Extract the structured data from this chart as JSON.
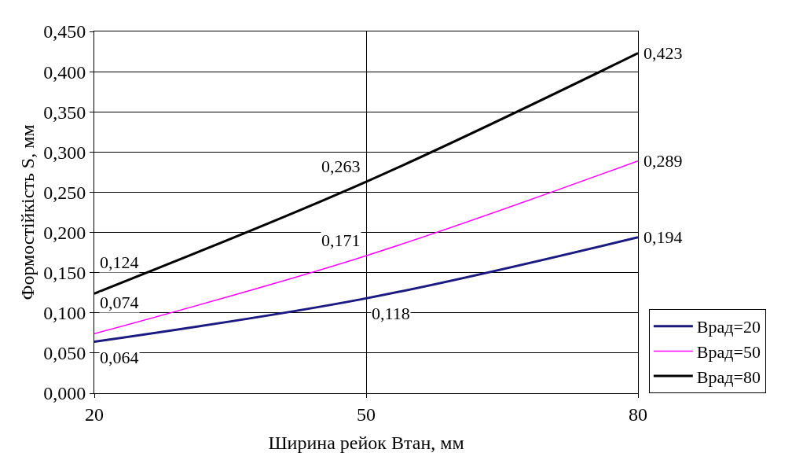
{
  "chart_data": {
    "type": "line",
    "xlabel": "Ширина рейок Втан, мм",
    "ylabel": "Формостійкість S, мм",
    "x": [
      20,
      50,
      80
    ],
    "xlim": [
      20,
      80
    ],
    "xticks": [
      20,
      50,
      80
    ],
    "ylim": [
      0,
      0.45
    ],
    "yticks": [
      {
        "value": 0,
        "label": "0,000"
      },
      {
        "value": 0.05,
        "label": "0,050"
      },
      {
        "value": 0.1,
        "label": "0,100"
      },
      {
        "value": 0.15,
        "label": "0,150"
      },
      {
        "value": 0.2,
        "label": "0,200"
      },
      {
        "value": 0.25,
        "label": "0,250"
      },
      {
        "value": 0.3,
        "label": "0,300"
      },
      {
        "value": 0.35,
        "label": "0,350"
      },
      {
        "value": 0.4,
        "label": "0,400"
      },
      {
        "value": 0.45,
        "label": "0,450"
      }
    ],
    "grid": true,
    "legend": "right",
    "marker": "none",
    "line_style": "solid",
    "series": [
      {
        "name": "Врад=20",
        "color": "#1a1a80",
        "values": [
          0.064,
          0.118,
          0.194
        ],
        "value_labels": [
          "0,064",
          "0,118",
          "0,194"
        ]
      },
      {
        "name": "Врад=50",
        "color": "#ff00ff",
        "values": [
          0.074,
          0.171,
          0.289
        ],
        "value_labels": [
          "0,074",
          "0,171",
          "0,289"
        ]
      },
      {
        "name": "Врад=80",
        "color": "#000000",
        "values": [
          0.124,
          0.263,
          0.423
        ],
        "value_labels": [
          "0,124",
          "0,263",
          "0,423"
        ]
      }
    ]
  }
}
